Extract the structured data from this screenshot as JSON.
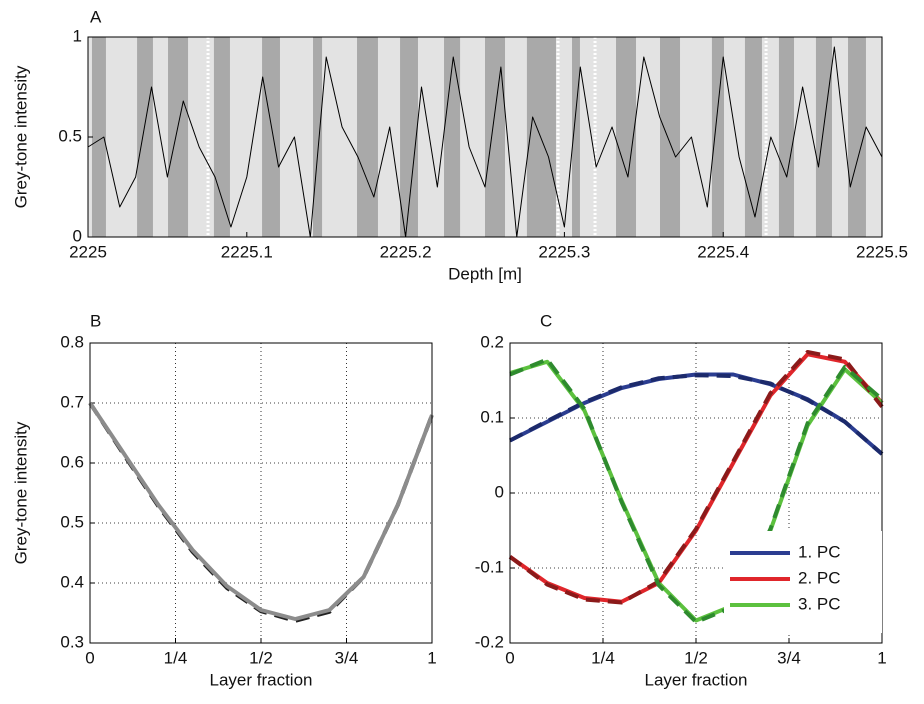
{
  "chart_data": [
    {
      "type": "line",
      "title": "A",
      "x_label": "Depth [m]",
      "y_label": "Grey-tone intensity",
      "xlim": [
        2225,
        2225.5
      ],
      "xticks": [
        2225,
        2225.1,
        2225.2,
        2225.3,
        2225.4,
        2225.5
      ],
      "ylim": [
        0,
        1
      ],
      "yticks": [
        0,
        0.5,
        1
      ],
      "grid": false,
      "band_color": "#a9a9a9",
      "background": "#e3e3e3",
      "marker_color": "#ffffff",
      "bands": [
        [
          2225.0025,
          2225.0113
        ],
        [
          2225.0309,
          2225.0409
        ],
        [
          2225.0504,
          2225.063
        ],
        [
          2225.0793,
          2225.0894
        ],
        [
          2225.1096,
          2225.1209
        ],
        [
          2225.1417,
          2225.1474
        ],
        [
          2225.1694,
          2225.1826
        ],
        [
          2225.1965,
          2225.2078
        ],
        [
          2225.2242,
          2225.2343
        ],
        [
          2225.25,
          2225.2626
        ],
        [
          2225.2764,
          2225.2947
        ],
        [
          2225.3048,
          2225.3098
        ],
        [
          2225.3325,
          2225.3451
        ],
        [
          2225.3602,
          2225.3728
        ],
        [
          2225.3929,
          2225.4005
        ],
        [
          2225.4137,
          2225.4244
        ],
        [
          2225.4351,
          2225.4446
        ],
        [
          2225.4584,
          2225.4685
        ],
        [
          2225.4786,
          2225.4899
        ]
      ],
      "markers": [
        2225.0756,
        2225.296,
        2225.3193,
        2225.427
      ],
      "x": [
        2225,
        2225.01,
        2225.02,
        2225.03,
        2225.04,
        2225.05,
        2225.06,
        2225.07,
        2225.08,
        2225.09,
        2225.1,
        2225.11,
        2225.12,
        2225.13,
        2225.14,
        2225.15,
        2225.16,
        2225.17,
        2225.18,
        2225.19,
        2225.2,
        2225.21,
        2225.22,
        2225.23,
        2225.24,
        2225.25,
        2225.26,
        2225.27,
        2225.28,
        2225.29,
        2225.3,
        2225.31,
        2225.32,
        2225.33,
        2225.34,
        2225.35,
        2225.36,
        2225.37,
        2225.38,
        2225.39,
        2225.4,
        2225.41,
        2225.42,
        2225.43,
        2225.44,
        2225.45,
        2225.46,
        2225.47,
        2225.48,
        2225.49,
        2225.5
      ],
      "series": [
        {
          "color": "#000000",
          "values": [
            0.45,
            0.5,
            0.15,
            0.3,
            0.75,
            0.3,
            0.68,
            0.45,
            0.3,
            0.05,
            0.3,
            0.8,
            0.35,
            0.5,
            0.0,
            0.9,
            0.55,
            0.4,
            0.2,
            0.55,
            0.0,
            0.75,
            0.25,
            0.9,
            0.45,
            0.25,
            0.85,
            0.0,
            0.6,
            0.4,
            0.05,
            0.85,
            0.35,
            0.55,
            0.3,
            0.9,
            0.6,
            0.4,
            0.5,
            0.15,
            0.9,
            0.4,
            0.1,
            0.5,
            0.3,
            0.75,
            0.35,
            0.95,
            0.25,
            0.55,
            0.4
          ]
        }
      ]
    },
    {
      "type": "line",
      "title": "B",
      "x_label": "Layer fraction",
      "y_label": "Grey-tone intensity",
      "xlim": [
        0,
        1
      ],
      "xticks": [
        0,
        {
          "value": 0.25,
          "label": "1/4"
        },
        {
          "value": 0.5,
          "label": "1/2"
        },
        {
          "value": 0.75,
          "label": "3/4"
        },
        1
      ],
      "ylim": [
        0.3,
        0.8
      ],
      "yticks": [
        0.3,
        0.4,
        0.5,
        0.6,
        0.7,
        0.8
      ],
      "grid": true,
      "x": [
        0,
        0.1,
        0.2,
        0.3,
        0.4,
        0.5,
        0.6,
        0.7,
        0.8,
        0.9,
        1
      ],
      "series": [
        {
          "color": "#222222",
          "dashed": true,
          "values": [
            0.7,
            0.613,
            0.528,
            0.452,
            0.392,
            0.353,
            0.337,
            0.352,
            0.41,
            0.53,
            0.68
          ]
        },
        {
          "color": "#8c8c8c",
          "values": [
            0.7,
            0.615,
            0.53,
            0.455,
            0.395,
            0.355,
            0.34,
            0.355,
            0.41,
            0.53,
            0.68
          ]
        }
      ]
    },
    {
      "type": "line",
      "title": "C",
      "x_label": "Layer fraction",
      "xlim": [
        0,
        1
      ],
      "xticks": [
        0,
        {
          "value": 0.25,
          "label": "1/4"
        },
        {
          "value": 0.5,
          "label": "1/2"
        },
        {
          "value": 0.75,
          "label": "3/4"
        },
        1
      ],
      "ylim": [
        -0.2,
        0.2
      ],
      "yticks": [
        -0.2,
        -0.1,
        0,
        0.1,
        0.2
      ],
      "grid": true,
      "x": [
        0,
        0.1,
        0.2,
        0.3,
        0.4,
        0.5,
        0.6,
        0.7,
        0.8,
        0.9,
        1
      ],
      "legend": "lower right",
      "dashed_series": [
        {
          "color": "#1c2a6b",
          "values": [
            0.07,
            0.096,
            0.121,
            0.141,
            0.153,
            0.157,
            0.156,
            0.146,
            0.124,
            0.095,
            0.052
          ]
        },
        {
          "color": "#8b1a1a",
          "values": [
            -0.085,
            -0.122,
            -0.142,
            -0.146,
            -0.118,
            -0.048,
            0.042,
            0.133,
            0.188,
            0.178,
            0.115
          ]
        },
        {
          "color": "#2e8b2e",
          "values": [
            0.158,
            0.178,
            0.112,
            -0.012,
            -0.123,
            -0.172,
            -0.152,
            -0.048,
            0.093,
            0.168,
            0.125
          ]
        }
      ],
      "series": [
        {
          "name": "1. PC",
          "color": "#2b3d91",
          "values": [
            0.07,
            0.095,
            0.12,
            0.14,
            0.152,
            0.158,
            0.158,
            0.145,
            0.125,
            0.095,
            0.052
          ]
        },
        {
          "name": "2. PC",
          "color": "#e0262b",
          "values": [
            -0.085,
            -0.12,
            -0.14,
            -0.145,
            -0.12,
            -0.05,
            0.04,
            0.13,
            0.185,
            0.175,
            0.12
          ]
        },
        {
          "name": "3. PC",
          "color": "#5cc13e",
          "values": [
            0.16,
            0.175,
            0.11,
            -0.01,
            -0.12,
            -0.17,
            -0.15,
            -0.05,
            0.09,
            0.165,
            0.12
          ]
        }
      ]
    }
  ]
}
